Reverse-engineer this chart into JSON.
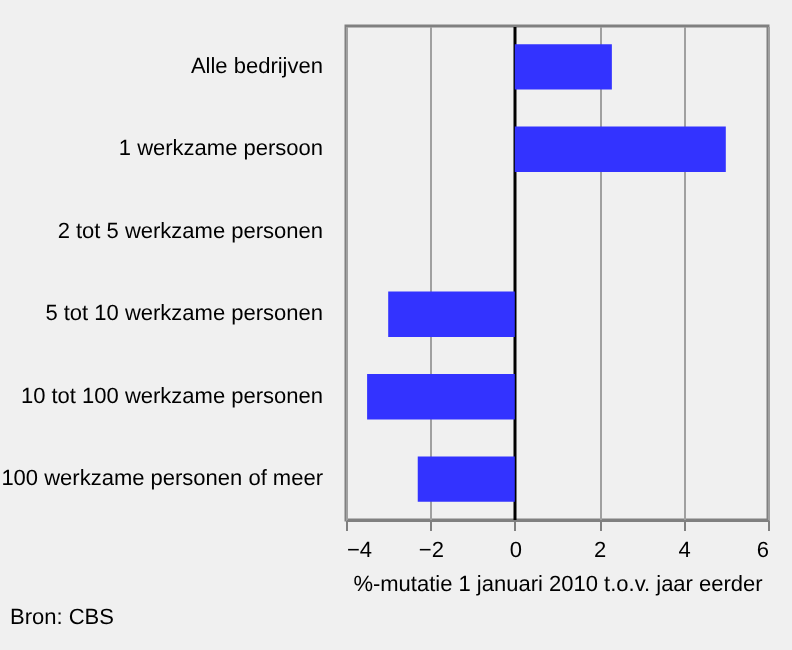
{
  "chart_data": {
    "type": "bar",
    "orientation": "horizontal",
    "xlabel": "%-mutatie 1 januari 2010 t.o.v. jaar eerder",
    "categories": [
      "Alle bedrijven",
      "1 werkzame persoon",
      "2 tot 5 werkzame personen",
      "5 tot 10 werkzame personen",
      "10 tot 100 werkzame personen",
      "100 werkzame personen of meer"
    ],
    "values": [
      2.3,
      5.0,
      0,
      -3.0,
      -3.5,
      -2.3
    ],
    "color": "#3333ff",
    "xlim": [
      -4,
      6
    ],
    "xticks": [
      -4,
      -2,
      0,
      2,
      4,
      6
    ],
    "grid": "x",
    "annotations": [
      "Bron: CBS"
    ]
  }
}
